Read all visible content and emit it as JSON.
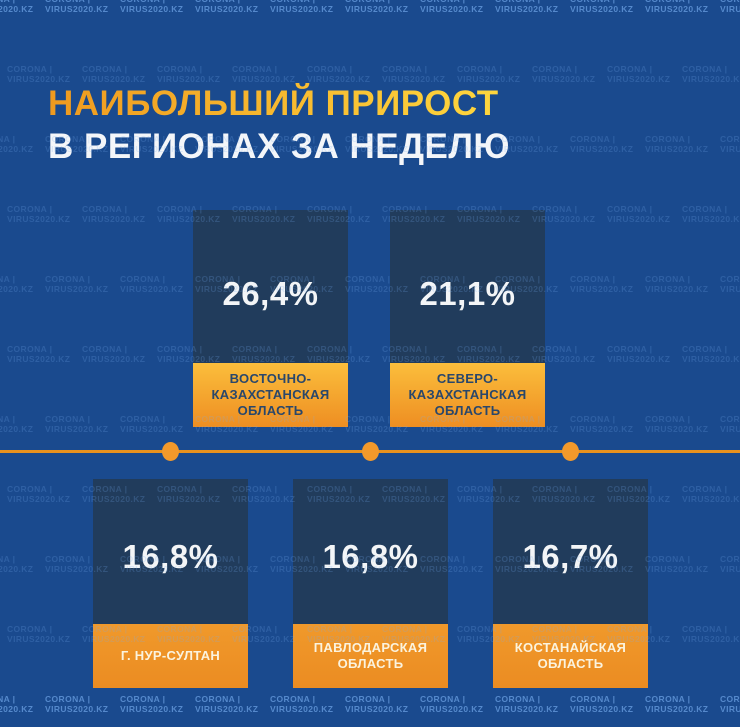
{
  "header": {
    "title_line1": "НАИБОЛЬШИЙ ПРИРОСТ",
    "title_line2": "В РЕГИОНАХ ЗА НЕДЕЛЮ"
  },
  "watermark": {
    "line1": "CORONA |",
    "line2": "VIRUS2020.KZ"
  },
  "cards": [
    {
      "value": "26,4%",
      "region": "ВОСТОЧНО-\nКАЗАХСТАНСКАЯ\nОБЛАСТЬ"
    },
    {
      "value": "21,1%",
      "region": "СЕВЕРО-\nКАЗАХСТАНСКАЯ\nОБЛАСТЬ"
    },
    {
      "value": "16,8%",
      "region": "Г. НУР-СУЛТАН"
    },
    {
      "value": "16,8%",
      "region": "ПАВЛОДАРСКАЯ\nОБЛАСТЬ"
    },
    {
      "value": "16,7%",
      "region": "КОСТАНАЙСКАЯ\nОБЛАСТЬ"
    }
  ],
  "colors": {
    "background": "#1a4a8e",
    "card_box": "#213c5c",
    "accent_orange": "#ee8e22",
    "accent_yellow": "#fbbe3c",
    "title_gradient_start": "#ef9a1f",
    "title_gradient_end": "#ffd83f",
    "divider": "#e9921e",
    "label_text_dark": "#29476b",
    "label_text_light": "#fbf3de",
    "value_text": "#f3f5f7"
  },
  "chart_data": {
    "type": "table",
    "title": "НАИБОЛЬШИЙ ПРИРОСТ В РЕГИОНАХ ЗА НЕДЕЛЮ",
    "categories": [
      "ВОСТОЧНО-КАЗАХСТАНСКАЯ ОБЛАСТЬ",
      "СЕВЕРО-КАЗАХСТАНСКАЯ ОБЛАСТЬ",
      "Г. НУР-СУЛТАН",
      "ПАВЛОДАРСКАЯ ОБЛАСТЬ",
      "КОСТАНАЙСКАЯ ОБЛАСТЬ"
    ],
    "values": [
      26.4,
      21.1,
      16.8,
      16.8,
      16.7
    ],
    "value_labels": [
      "26,4%",
      "21,1%",
      "16,8%",
      "16,8%",
      "16,7%"
    ],
    "unit": "%",
    "layout": "two rows of stat cards: 2 top, 3 bottom, divider line with dots between rows"
  }
}
